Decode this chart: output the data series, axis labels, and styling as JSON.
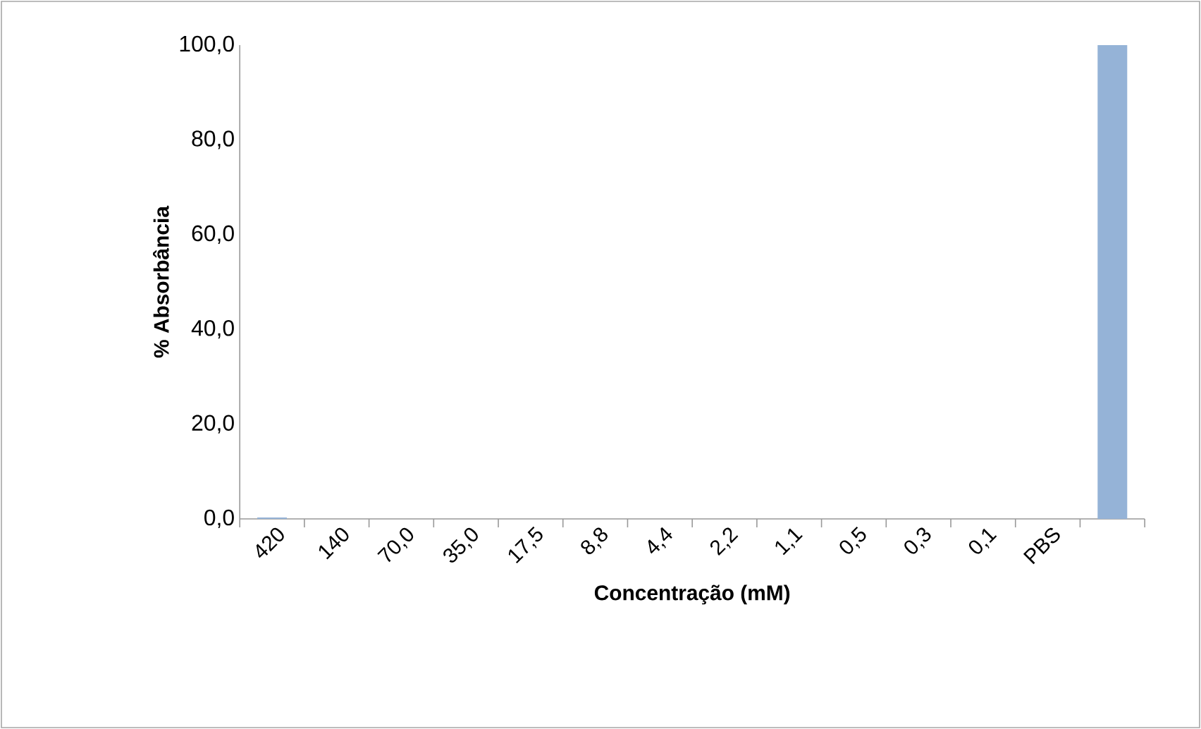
{
  "chart_data": {
    "type": "bar",
    "xlabel": "Concentração (mM)",
    "ylabel": "% Absorbância",
    "categories": [
      "420",
      "140",
      "70,0",
      "35,0",
      "17,5",
      "8,8",
      "4,4",
      "2,2",
      "1,1",
      "0,5",
      "0,3",
      "0,1",
      "PBS",
      null
    ],
    "values": [
      0.3,
      0,
      0,
      0,
      0,
      0,
      0,
      0,
      0,
      0,
      0,
      0,
      0,
      100
    ],
    "color": "#95b3d7",
    "ylim": [
      0,
      100
    ],
    "yticks": [
      {
        "value": 0,
        "label": "0,0"
      },
      {
        "value": 20,
        "label": "20,0"
      },
      {
        "value": 40,
        "label": "40,0"
      },
      {
        "value": 60,
        "label": "60,0"
      },
      {
        "value": 80,
        "label": "80,0"
      },
      {
        "value": 100,
        "label": "100,0"
      }
    ],
    "grid": false
  }
}
